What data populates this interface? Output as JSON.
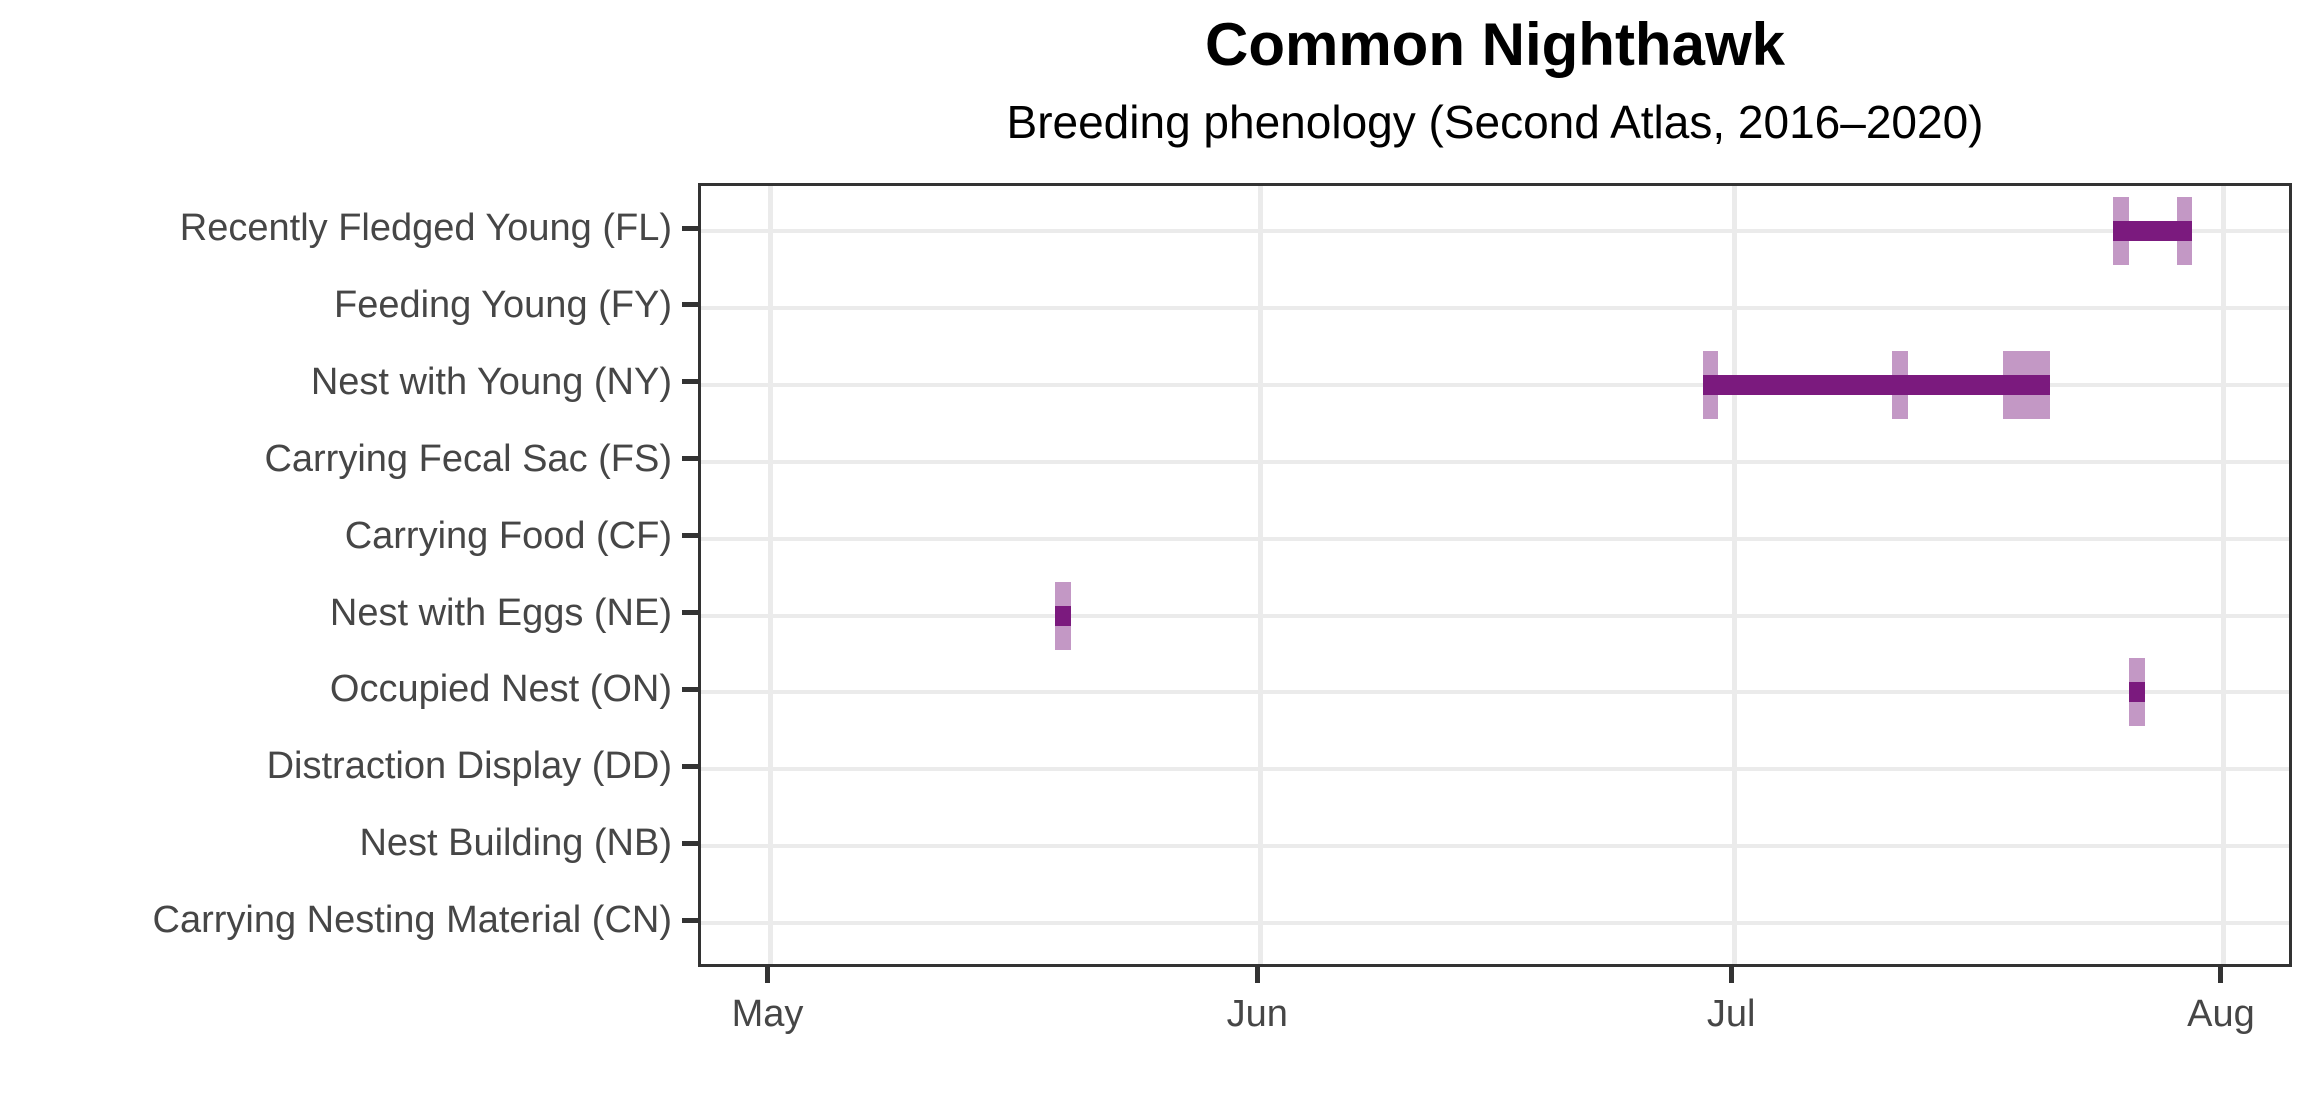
{
  "chart_data": {
    "type": "bar",
    "subtype": "horizontal date-range phenology chart (record ticks + min-max range bars)",
    "title": "Common Nighthawk",
    "subtitle": "Breeding phenology (Second Atlas, 2016–2020)",
    "legend_position": "none",
    "grid": "on",
    "y_axis_order_note": "categories listed top to bottom",
    "categories": [
      {
        "label": "Recently Fledged Young (FL)",
        "code": "FL",
        "records": [
          {
            "date": "Jul 25",
            "day": 85
          },
          {
            "date": "Jul 29",
            "day": 89
          }
        ],
        "range": {
          "start": "Jul 25",
          "end": "Jul 29"
        }
      },
      {
        "label": "Feeding Young (FY)",
        "code": "FY",
        "records": [],
        "range": null
      },
      {
        "label": "Nest with Young (NY)",
        "code": "NY",
        "records": [
          {
            "date": "Jun 29",
            "day": 59
          },
          {
            "date": "Jul 11",
            "day": 71
          },
          {
            "date": "Jul 18",
            "day": 78
          },
          {
            "date": "Jul 19",
            "day": 79
          },
          {
            "date": "Jul 20",
            "day": 80
          }
        ],
        "range": {
          "start": "Jun 29",
          "end": "Jul 20"
        }
      },
      {
        "label": "Carrying Fecal Sac (FS)",
        "code": "FS",
        "records": [],
        "range": null
      },
      {
        "label": "Carrying Food (CF)",
        "code": "CF",
        "records": [],
        "range": null
      },
      {
        "label": "Nest with Eggs (NE)",
        "code": "NE",
        "records": [
          {
            "date": "May 19",
            "day": 18
          }
        ],
        "range": {
          "start": "May 19",
          "end": "May 19"
        }
      },
      {
        "label": "Occupied Nest (ON)",
        "code": "ON",
        "records": [
          {
            "date": "Jul 26",
            "day": 86
          }
        ],
        "range": {
          "start": "Jul 26",
          "end": "Jul 26"
        }
      },
      {
        "label": "Distraction Display (DD)",
        "code": "DD",
        "records": [],
        "range": null
      },
      {
        "label": "Nest Building (NB)",
        "code": "NB",
        "records": [],
        "range": null
      },
      {
        "label": "Carrying Nesting Material (CN)",
        "code": "CN",
        "records": [],
        "range": null
      }
    ],
    "x_axis": {
      "day_zero": "May 1",
      "ticks": [
        {
          "label": "May",
          "day": 0
        },
        {
          "label": "Jun",
          "day": 31
        },
        {
          "label": "Jul",
          "day": 61
        },
        {
          "label": "Aug",
          "day": 92
        }
      ],
      "domain_days": [
        -4.4,
        96.5
      ],
      "record_width_days": 1
    },
    "colors": {
      "range_bar": "#7b1a7e",
      "record_tick": "rgba(123,26,126,0.45)",
      "grid": "#ebebeb",
      "axis": "#333333",
      "tick_label": "#464646",
      "title": "#000000"
    }
  }
}
